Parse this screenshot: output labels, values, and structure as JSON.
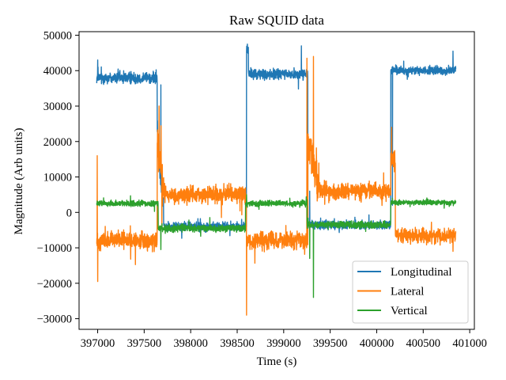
{
  "chart_data": {
    "type": "line",
    "title": "Raw SQUID data",
    "xlabel": "Time (s)",
    "ylabel": "Magnitude (Arb units)",
    "xlim": [
      396800,
      401050
    ],
    "ylim": [
      -33000,
      51000
    ],
    "xticks": [
      397000,
      397500,
      398000,
      398500,
      399000,
      399500,
      400000,
      400500,
      401000
    ],
    "yticks": [
      -30000,
      -20000,
      -10000,
      0,
      10000,
      20000,
      30000,
      40000,
      50000
    ],
    "grid": false,
    "legend_position": "lower right",
    "series": [
      {
        "name": "Longitudinal",
        "color": "#1f77b4",
        "x_start": 396990,
        "x_end": 400850,
        "segments": [
          {
            "x0": 396990,
            "x1": 397640,
            "base": 38000,
            "noise": 2500
          },
          {
            "x0": 397640,
            "x1": 397710,
            "base": 22000,
            "noise": 6000,
            "ramp_to": 0
          },
          {
            "x0": 397710,
            "x1": 398600,
            "base": -4000,
            "noise": 1800
          },
          {
            "x0": 398600,
            "x1": 398620,
            "base": 46000,
            "noise": 1500
          },
          {
            "x0": 398620,
            "x1": 399260,
            "base": 39000,
            "noise": 2200
          },
          {
            "x0": 399260,
            "x1": 400150,
            "base": -3500,
            "noise": 1800
          },
          {
            "x0": 400150,
            "x1": 400850,
            "base": 40000,
            "noise": 1800
          }
        ],
        "spikes": [
          {
            "x": 397000,
            "y": 28500
          },
          {
            "x": 397000,
            "y": 43000
          },
          {
            "x": 397680,
            "y": 36000
          },
          {
            "x": 398610,
            "y": 47500
          },
          {
            "x": 399190,
            "y": 47000
          },
          {
            "x": 399280,
            "y": 6000
          },
          {
            "x": 400170,
            "y": 2000
          },
          {
            "x": 400820,
            "y": 45500
          }
        ]
      },
      {
        "name": "Lateral",
        "color": "#ff7f0e",
        "x_start": 396990,
        "x_end": 400850,
        "segments": [
          {
            "x0": 396990,
            "x1": 397640,
            "base": -8000,
            "noise": 3500
          },
          {
            "x0": 397640,
            "x1": 397710,
            "base": 20000,
            "noise": 9000,
            "ramp_to": 5000
          },
          {
            "x0": 397710,
            "x1": 398600,
            "base": 5000,
            "noise": 3500
          },
          {
            "x0": 398600,
            "x1": 399260,
            "base": -8000,
            "noise": 3500
          },
          {
            "x0": 399260,
            "x1": 399380,
            "base": 20000,
            "noise": 8000,
            "ramp_to": 8000
          },
          {
            "x0": 399380,
            "x1": 400150,
            "base": 6000,
            "noise": 3500
          },
          {
            "x0": 400150,
            "x1": 400200,
            "base": 15000,
            "noise": 5000
          },
          {
            "x0": 400200,
            "x1": 400850,
            "base": -6500,
            "noise": 3000
          }
        ],
        "spikes": [
          {
            "x": 396995,
            "y": 16000
          },
          {
            "x": 397000,
            "y": -19500
          },
          {
            "x": 397660,
            "y": 30000
          },
          {
            "x": 398600,
            "y": -29000
          },
          {
            "x": 399320,
            "y": 44000
          },
          {
            "x": 399250,
            "y": 43500
          },
          {
            "x": 400160,
            "y": 24000
          },
          {
            "x": 400820,
            "y": -11000
          }
        ]
      },
      {
        "name": "Vertical",
        "color": "#2ca02c",
        "x_start": 396990,
        "x_end": 400850,
        "segments": [
          {
            "x0": 396990,
            "x1": 397650,
            "base": 2500,
            "noise": 1200
          },
          {
            "x0": 397650,
            "x1": 398590,
            "base": -4500,
            "noise": 1500
          },
          {
            "x0": 398590,
            "x1": 399250,
            "base": 2500,
            "noise": 1200
          },
          {
            "x0": 399250,
            "x1": 400150,
            "base": -3500,
            "noise": 1500
          },
          {
            "x0": 400150,
            "x1": 400850,
            "base": 2800,
            "noise": 1000
          }
        ],
        "spikes": [
          {
            "x": 397680,
            "y": -10500
          },
          {
            "x": 398600,
            "y": 5000
          },
          {
            "x": 399280,
            "y": -13000
          },
          {
            "x": 399320,
            "y": -24000
          },
          {
            "x": 400170,
            "y": 4000
          }
        ]
      }
    ]
  }
}
